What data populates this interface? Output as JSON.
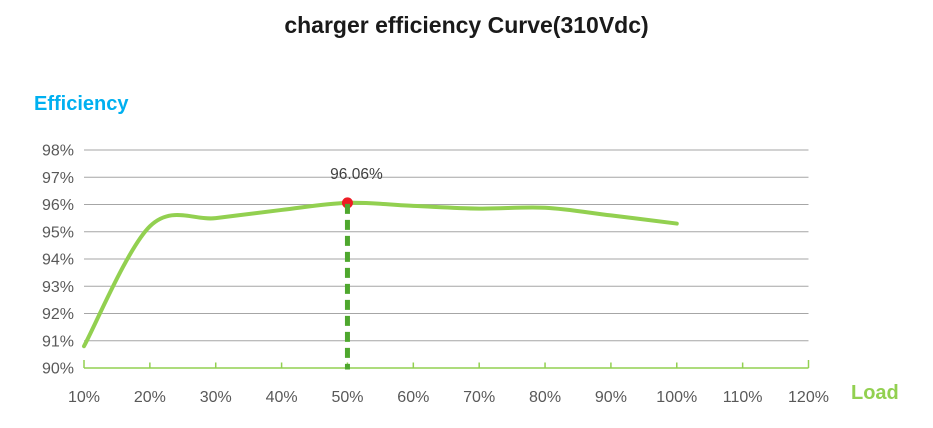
{
  "colors": {
    "title": "#1a1a1a",
    "efficiency_label": "#00b0f0",
    "load_label": "#92d050",
    "curve": "#92d050",
    "axis_line": "#92d050",
    "tick": "#92d050",
    "gridline": "#a6a6a6",
    "tick_label": "#595959",
    "annotation_text": "#3f3f3f",
    "dashed_line": "#4ea72e",
    "marker_fill": "#ee1c25"
  },
  "chart_data": {
    "type": "line",
    "title": "charger efficiency Curve(310Vdc)",
    "xlabel": "Load",
    "ylabel": "Efficiency",
    "x": [
      10,
      20,
      30,
      40,
      50,
      60,
      70,
      80,
      90,
      100
    ],
    "series": [
      {
        "name": "charger efficiency",
        "values": [
          90.8,
          95.2,
          95.5,
          95.8,
          96.06,
          95.95,
          95.85,
          95.88,
          95.6,
          95.3
        ]
      }
    ],
    "xlim": [
      10,
      120
    ],
    "ylim": [
      90,
      98
    ],
    "xticks": [
      "10%",
      "20%",
      "30%",
      "40%",
      "50%",
      "60%",
      "70%",
      "80%",
      "90%",
      "100%",
      "110%",
      "120%"
    ],
    "yticks": [
      "90%",
      "91%",
      "92%",
      "93%",
      "94%",
      "95%",
      "96%",
      "97%",
      "98%"
    ],
    "grid": "horizontal",
    "legend": "none",
    "annotation": {
      "label": "96.06%",
      "x": 50,
      "y": 96.06
    }
  }
}
